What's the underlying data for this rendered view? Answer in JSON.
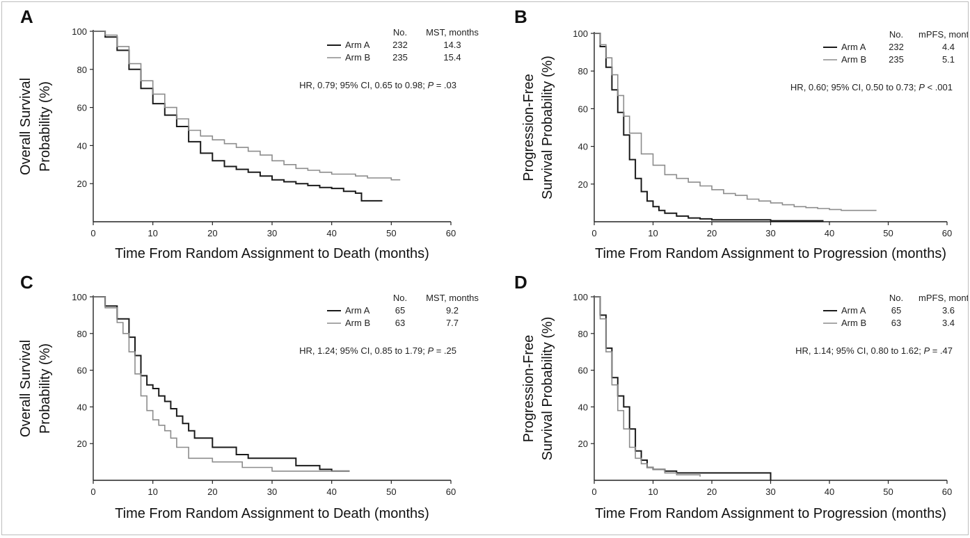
{
  "colors": {
    "arm_a": "#1a1a1a",
    "arm_b": "#8c8c8c",
    "axis": "#222222"
  },
  "chart_data": [
    {
      "panel": "A",
      "type": "line",
      "subtype": "kaplan-meier",
      "xlabel": "Time From Random Assignment to Death (months)",
      "ylabel_lines": [
        "Overall Survival",
        "Probability (%)"
      ],
      "xlim": [
        0,
        60
      ],
      "ylim": [
        0,
        100
      ],
      "xticks": [
        0,
        10,
        20,
        30,
        40,
        50,
        60
      ],
      "yticks": [
        20,
        40,
        60,
        80,
        100
      ],
      "grid": false,
      "legend": {
        "position": "top-right",
        "headers": [
          "No.",
          "MST, months"
        ],
        "rows": [
          {
            "label": "Arm A",
            "n": "232",
            "stat": "14.3"
          },
          {
            "label": "Arm B",
            "n": "235",
            "stat": "15.4"
          }
        ]
      },
      "hr_text": {
        "before": "HR, 0.79; 95% CI, 0.65 to 0.98; ",
        "p_italic": "P",
        "after": " = .03"
      },
      "series": [
        {
          "name": "Arm A",
          "x": [
            0,
            2,
            4,
            6,
            8,
            10,
            12,
            14,
            16,
            18,
            20,
            22,
            24,
            26,
            28,
            30,
            32,
            34,
            36,
            38,
            40,
            42,
            44,
            45,
            46,
            48.5
          ],
          "y": [
            100,
            97,
            90,
            80,
            70,
            62,
            56,
            50,
            42,
            36,
            32,
            29,
            27.5,
            26,
            24,
            22,
            21,
            20,
            19,
            18,
            17.5,
            16,
            15,
            11,
            11,
            11
          ]
        },
        {
          "name": "Arm B",
          "x": [
            0,
            2,
            4,
            6,
            8,
            10,
            12,
            14,
            16,
            18,
            20,
            22,
            24,
            26,
            28,
            30,
            32,
            34,
            36,
            38,
            40,
            42,
            44,
            46,
            48,
            50,
            51.5
          ],
          "y": [
            100,
            98,
            92,
            83,
            74,
            67,
            60,
            54,
            48,
            45,
            43,
            41,
            39,
            37,
            35,
            32,
            30,
            28,
            27,
            26,
            25,
            25,
            24,
            23,
            23,
            22,
            22
          ]
        }
      ]
    },
    {
      "panel": "B",
      "type": "line",
      "subtype": "kaplan-meier",
      "xlabel": "Time From Random Assignment to Progression (months)",
      "ylabel_lines": [
        "Progression-Free",
        "Survival Probability (%)"
      ],
      "xlim": [
        0,
        60
      ],
      "ylim": [
        0,
        100
      ],
      "xticks": [
        0,
        10,
        20,
        30,
        40,
        50,
        60
      ],
      "yticks": [
        20,
        40,
        60,
        80,
        100
      ],
      "grid": false,
      "legend": {
        "position": "top-right",
        "headers": [
          "No.",
          "mPFS, months"
        ],
        "rows": [
          {
            "label": "Arm A",
            "n": "232",
            "stat": "4.4"
          },
          {
            "label": "Arm B",
            "n": "235",
            "stat": "5.1"
          }
        ]
      },
      "hr_text": {
        "before": "HR, 0.60; 95% CI, 0.50 to 0.73; ",
        "p_italic": "P",
        "after": " < .001"
      },
      "series": [
        {
          "name": "Arm A",
          "x": [
            0,
            1,
            2,
            3,
            4,
            5,
            6,
            7,
            8,
            9,
            10,
            11,
            12,
            14,
            16,
            18,
            20,
            25,
            30,
            35,
            39
          ],
          "y": [
            100,
            93,
            82,
            70,
            58,
            46,
            33,
            23,
            16,
            11,
            8,
            6,
            4.5,
            3,
            2,
            1.5,
            1,
            1,
            0.5,
            0.5,
            0.5
          ]
        },
        {
          "name": "Arm B",
          "x": [
            0,
            1,
            2,
            3,
            4,
            5,
            6,
            8,
            10,
            12,
            14,
            16,
            18,
            20,
            22,
            24,
            26,
            28,
            30,
            32,
            34,
            36,
            38,
            40,
            42,
            44,
            46,
            48
          ],
          "y": [
            100,
            94,
            87,
            78,
            67,
            56,
            47,
            36,
            30,
            25,
            23,
            21,
            19,
            17,
            15,
            14,
            12,
            11,
            10,
            9,
            8,
            7.5,
            7,
            6.5,
            6,
            6,
            6,
            6
          ]
        }
      ]
    },
    {
      "panel": "C",
      "type": "line",
      "subtype": "kaplan-meier",
      "xlabel": "Time From Random Assignment to Death (months)",
      "ylabel_lines": [
        "Overall Survival",
        "Probability (%)"
      ],
      "xlim": [
        0,
        60
      ],
      "ylim": [
        0,
        100
      ],
      "xticks": [
        0,
        10,
        20,
        30,
        40,
        50,
        60
      ],
      "yticks": [
        20,
        40,
        60,
        80,
        100
      ],
      "grid": false,
      "legend": {
        "position": "top-right",
        "headers": [
          "No.",
          "MST, months"
        ],
        "rows": [
          {
            "label": "Arm A",
            "n": "65",
            "stat": "9.2"
          },
          {
            "label": "Arm B",
            "n": "63",
            "stat": "7.7"
          }
        ]
      },
      "hr_text": {
        "before": "HR, 1.24; 95% CI, 0.85 to 1.79; ",
        "p_italic": "P",
        "after": " = .25"
      },
      "series": [
        {
          "name": "Arm A",
          "x": [
            0,
            2,
            4,
            6,
            7,
            8,
            9,
            10,
            11,
            12,
            13,
            14,
            15,
            16,
            17,
            18,
            20,
            22,
            24,
            26,
            28,
            30,
            32,
            34,
            36,
            38,
            40,
            42,
            43
          ],
          "y": [
            100,
            95,
            88,
            78,
            68,
            57,
            52,
            50,
            46,
            43,
            39,
            35,
            31,
            27,
            23,
            23,
            18,
            18,
            14,
            12,
            12,
            12,
            12,
            8,
            8,
            6,
            5,
            5,
            5
          ]
        },
        {
          "name": "Arm B",
          "x": [
            0,
            2,
            4,
            5,
            6,
            7,
            8,
            9,
            10,
            11,
            12,
            13,
            14,
            16,
            18,
            20,
            25,
            30,
            35,
            40,
            43
          ],
          "y": [
            100,
            94,
            86,
            80,
            70,
            58,
            46,
            38,
            33,
            30,
            27,
            23,
            18,
            12,
            12,
            10,
            7,
            5,
            5,
            5,
            5
          ]
        }
      ]
    },
    {
      "panel": "D",
      "type": "line",
      "subtype": "kaplan-meier",
      "xlabel": "Time From Random Assignment to Progression (months)",
      "ylabel_lines": [
        "Progression-Free",
        "Survival Probability (%)"
      ],
      "xlim": [
        0,
        60
      ],
      "ylim": [
        0,
        100
      ],
      "xticks": [
        0,
        10,
        20,
        30,
        40,
        50,
        60
      ],
      "yticks": [
        20,
        40,
        60,
        80,
        100
      ],
      "grid": false,
      "legend": {
        "position": "top-right",
        "headers": [
          "No.",
          "mPFS, months"
        ],
        "rows": [
          {
            "label": "Arm A",
            "n": "65",
            "stat": "3.6"
          },
          {
            "label": "Arm B",
            "n": "63",
            "stat": "3.4"
          }
        ]
      },
      "hr_text": {
        "before": "HR, 1.14; 95% CI, 0.80 to 1.62; ",
        "p_italic": "P",
        "after": " = .47"
      },
      "series": [
        {
          "name": "Arm A",
          "x": [
            0,
            1,
            2,
            3,
            4,
            5,
            6,
            7,
            8,
            9,
            10,
            12,
            14,
            16,
            20,
            25,
            28,
            30
          ],
          "y": [
            100,
            90,
            72,
            56,
            46,
            40,
            28,
            16,
            11,
            7,
            6,
            5,
            4,
            4,
            4,
            4,
            4,
            0
          ]
        },
        {
          "name": "Arm B",
          "x": [
            0,
            1,
            2,
            3,
            4,
            5,
            6,
            7,
            8,
            9,
            10,
            12,
            14,
            16,
            18
          ],
          "y": [
            100,
            88,
            70,
            52,
            38,
            28,
            18,
            12,
            9,
            7,
            6,
            4,
            3,
            3,
            2
          ]
        }
      ]
    }
  ]
}
